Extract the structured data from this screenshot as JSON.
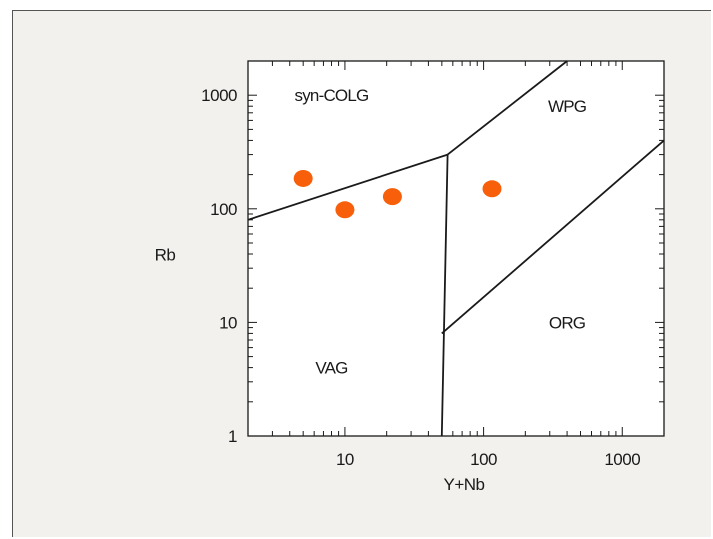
{
  "chart_data": {
    "type": "scatter",
    "title": "",
    "xlabel": "Y+Nb",
    "ylabel": "Rb",
    "xscale": "log",
    "yscale": "log",
    "xlim": [
      2,
      2000
    ],
    "ylim": [
      1,
      2000
    ],
    "x_ticks": [
      10,
      100,
      1000
    ],
    "x_tick_labels": [
      "10",
      "100",
      "1000"
    ],
    "y_ticks": [
      1,
      10,
      100,
      1000
    ],
    "y_tick_labels": [
      "1",
      "10",
      "100",
      "1000"
    ],
    "grid": false,
    "point_color": "#f75f0a",
    "points": [
      {
        "x": 5,
        "y": 185
      },
      {
        "x": 10,
        "y": 98
      },
      {
        "x": 22,
        "y": 128
      },
      {
        "x": 115,
        "y": 150
      }
    ],
    "boundaries": [
      {
        "id": "vag-colg",
        "points": [
          [
            2,
            80
          ],
          [
            55,
            300
          ]
        ]
      },
      {
        "id": "vag-wpg",
        "points": [
          [
            50,
            1
          ],
          [
            55,
            300
          ]
        ]
      },
      {
        "id": "colg-wpg",
        "points": [
          [
            55,
            300
          ],
          [
            400,
            2000
          ]
        ]
      },
      {
        "id": "wpg-org",
        "points": [
          [
            50,
            8
          ],
          [
            2000,
            400
          ]
        ]
      }
    ],
    "regions": [
      {
        "label": "syn-COLG",
        "x": 8,
        "y": 1000
      },
      {
        "label": "WPG",
        "x": 400,
        "y": 800
      },
      {
        "label": "VAG",
        "x": 8,
        "y": 4
      },
      {
        "label": "ORG",
        "x": 400,
        "y": 10
      }
    ]
  }
}
